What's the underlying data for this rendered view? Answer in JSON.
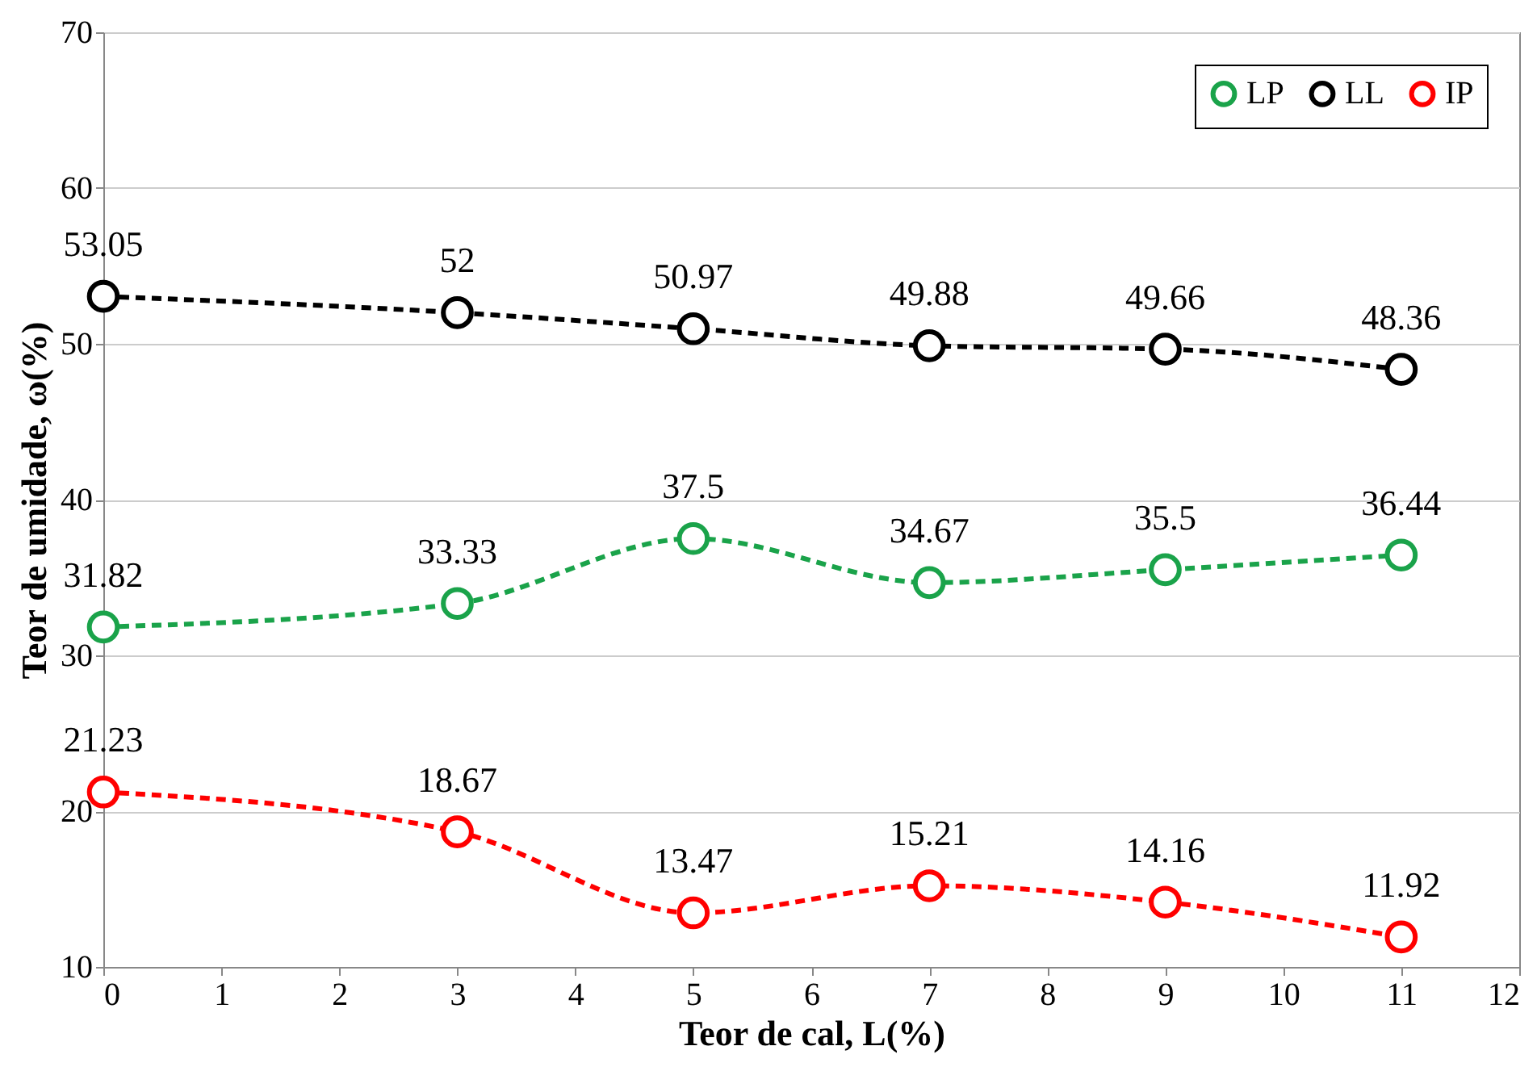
{
  "chart_data": {
    "type": "line",
    "xlabel": "Teor de cal, L(%)",
    "ylabel": "Teor de umidade, ω(%)",
    "x": [
      0,
      3,
      5,
      7,
      9,
      11
    ],
    "series": [
      {
        "name": "LP",
        "color": "#1aa34a",
        "values": [
          31.82,
          33.33,
          37.5,
          34.67,
          35.5,
          36.44
        ]
      },
      {
        "name": "LL",
        "color": "#000000",
        "values": [
          53.05,
          52,
          50.97,
          49.88,
          49.66,
          48.36
        ]
      },
      {
        "name": "IP",
        "color": "#ff0000",
        "values": [
          21.23,
          18.67,
          13.47,
          15.21,
          14.16,
          11.92
        ]
      }
    ],
    "xlim": [
      0,
      12
    ],
    "xticks": [
      0,
      1,
      2,
      3,
      4,
      5,
      6,
      7,
      8,
      9,
      10,
      11,
      12
    ],
    "ylim": [
      10,
      70
    ],
    "yticks": [
      10,
      20,
      30,
      40,
      50,
      60,
      70
    ],
    "grid": "y",
    "legend": "top right",
    "marker": "circle",
    "line_style": "dashed",
    "data_labels": true
  }
}
